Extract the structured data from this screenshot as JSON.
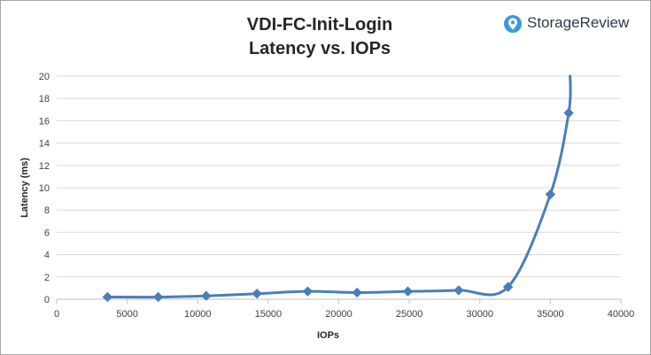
{
  "brand": {
    "name": "StorageReview",
    "icon": "storagereview-logo-icon",
    "icon_color": "#3a9bdc"
  },
  "chart_data": {
    "type": "line",
    "title_line1": "VDI-FC-Init-Login",
    "title_line2": "Latency vs. IOPs",
    "xlabel": "IOPs",
    "ylabel": "Latency (ms)",
    "xlim": [
      0,
      40000
    ],
    "ylim": [
      0,
      20
    ],
    "xticks": [
      0,
      5000,
      10000,
      15000,
      20000,
      25000,
      30000,
      35000,
      40000
    ],
    "yticks": [
      0,
      2,
      4,
      6,
      8,
      10,
      12,
      14,
      16,
      18,
      20
    ],
    "grid": "horizontal",
    "smoothed": true,
    "line_color": "#4a7ebb",
    "marker": "diamond",
    "series": [
      {
        "points": [
          [
            3600,
            0.2
          ],
          [
            7200,
            0.2
          ],
          [
            10600,
            0.3
          ],
          [
            14200,
            0.5
          ],
          [
            17800,
            0.7
          ],
          [
            21300,
            0.6
          ],
          [
            24900,
            0.7
          ],
          [
            28500,
            0.8
          ],
          [
            32000,
            1.1
          ],
          [
            35000,
            9.4
          ],
          [
            36300,
            16.7
          ],
          [
            36400,
            20.0
          ]
        ],
        "marked": [
          true,
          true,
          true,
          true,
          true,
          true,
          true,
          true,
          true,
          true,
          true,
          false
        ]
      }
    ]
  }
}
